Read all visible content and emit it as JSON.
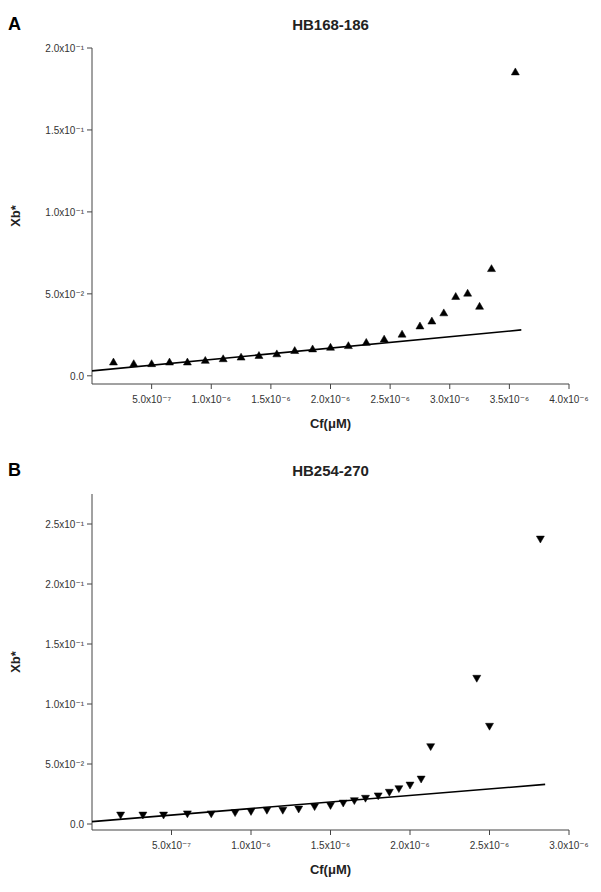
{
  "chart_data": [
    {
      "type": "scatter",
      "title": "HB168-186",
      "xlabel": "Cf(μM)",
      "ylabel": "Xb*",
      "annotations": [
        "A"
      ],
      "grid": false,
      "series": [
        {
          "type": "scatter",
          "marker": "triangle-up",
          "color": "black",
          "x": [
            1.8e-07,
            3.5e-07,
            5e-07,
            6.5e-07,
            8e-07,
            9.5e-07,
            1.1e-06,
            1.25e-06,
            1.4e-06,
            1.55e-06,
            1.7e-06,
            1.85e-06,
            2e-06,
            2.15e-06,
            2.3e-06,
            2.45e-06,
            2.6e-06,
            2.75e-06,
            2.85e-06,
            2.95e-06,
            3.05e-06,
            3.15e-06,
            3.25e-06,
            3.35e-06,
            3.55e-06
          ],
          "values": [
            0.008,
            0.007,
            0.007,
            0.008,
            0.008,
            0.009,
            0.01,
            0.011,
            0.012,
            0.013,
            0.015,
            0.016,
            0.017,
            0.018,
            0.02,
            0.022,
            0.025,
            0.03,
            0.033,
            0.038,
            0.048,
            0.05,
            0.042,
            0.065,
            0.185
          ]
        },
        {
          "type": "line",
          "line_style": "solid",
          "color": "black",
          "x": [
            0.0,
            3.6e-06
          ],
          "values": [
            0.003,
            0.028
          ]
        }
      ],
      "xlim": [
        0.0,
        4e-06
      ],
      "ylim": [
        -0.005,
        0.2
      ],
      "xticks": [
        {
          "value": 5e-07,
          "label": "5.0x10⁻⁷"
        },
        {
          "value": 1e-06,
          "label": "1.0x10⁻⁶"
        },
        {
          "value": 1.5e-06,
          "label": "1.5x10⁻⁶"
        },
        {
          "value": 2e-06,
          "label": "2.0x10⁻⁶"
        },
        {
          "value": 2.5e-06,
          "label": "2.5x10⁻⁶"
        },
        {
          "value": 3e-06,
          "label": "3.0x10⁻⁶"
        },
        {
          "value": 3.5e-06,
          "label": "3.5x10⁻⁶"
        },
        {
          "value": 4e-06,
          "label": "4.0x10⁻⁶"
        }
      ],
      "yticks": [
        {
          "value": 0.0,
          "label": "0.0"
        },
        {
          "value": 0.05,
          "label": "5.0x10⁻²"
        },
        {
          "value": 0.1,
          "label": "1.0x10⁻¹"
        },
        {
          "value": 0.15,
          "label": "1.5x10⁻¹"
        },
        {
          "value": 0.2,
          "label": "2.0x10⁻¹"
        }
      ]
    },
    {
      "type": "scatter",
      "title": "HB254-270",
      "xlabel": "Cf(μM)",
      "ylabel": "Xb*",
      "annotations": [
        "B"
      ],
      "grid": false,
      "series": [
        {
          "type": "scatter",
          "marker": "triangle-down",
          "color": "black",
          "x": [
            1.8e-07,
            3.2e-07,
            4.5e-07,
            6e-07,
            7.5e-07,
            9e-07,
            1e-06,
            1.1e-06,
            1.2e-06,
            1.3e-06,
            1.4e-06,
            1.5e-06,
            1.58e-06,
            1.65e-06,
            1.72e-06,
            1.8e-06,
            1.87e-06,
            1.93e-06,
            2e-06,
            2.07e-06,
            2.13e-06,
            2.42e-06,
            2.5e-06,
            2.82e-06
          ],
          "values": [
            0.008,
            0.008,
            0.008,
            0.009,
            0.009,
            0.01,
            0.011,
            0.012,
            0.012,
            0.013,
            0.015,
            0.016,
            0.018,
            0.02,
            0.022,
            0.024,
            0.027,
            0.03,
            0.033,
            0.038,
            0.065,
            0.122,
            0.082,
            0.238
          ]
        },
        {
          "type": "line",
          "line_style": "solid",
          "color": "black",
          "x": [
            0.0,
            2.85e-06
          ],
          "values": [
            0.002,
            0.033
          ]
        }
      ],
      "xlim": [
        0.0,
        3e-06
      ],
      "ylim": [
        -0.005,
        0.275
      ],
      "xticks": [
        {
          "value": 5e-07,
          "label": "5.0x10⁻⁷"
        },
        {
          "value": 1e-06,
          "label": "1.0x10⁻⁶"
        },
        {
          "value": 1.5e-06,
          "label": "1.5x10⁻⁶"
        },
        {
          "value": 2e-06,
          "label": "2.0x10⁻⁶"
        },
        {
          "value": 2.5e-06,
          "label": "2.5x10⁻⁶"
        },
        {
          "value": 3e-06,
          "label": "3.0x10⁻⁶"
        }
      ],
      "yticks": [
        {
          "value": 0.0,
          "label": "0.0"
        },
        {
          "value": 0.05,
          "label": "5.0x10⁻²"
        },
        {
          "value": 0.1,
          "label": "1.0x10⁻¹"
        },
        {
          "value": 0.15,
          "label": "1.5x10⁻¹"
        },
        {
          "value": 0.2,
          "label": "2.0x10⁻¹"
        },
        {
          "value": 0.25,
          "label": "2.5x10⁻¹"
        }
      ]
    }
  ]
}
